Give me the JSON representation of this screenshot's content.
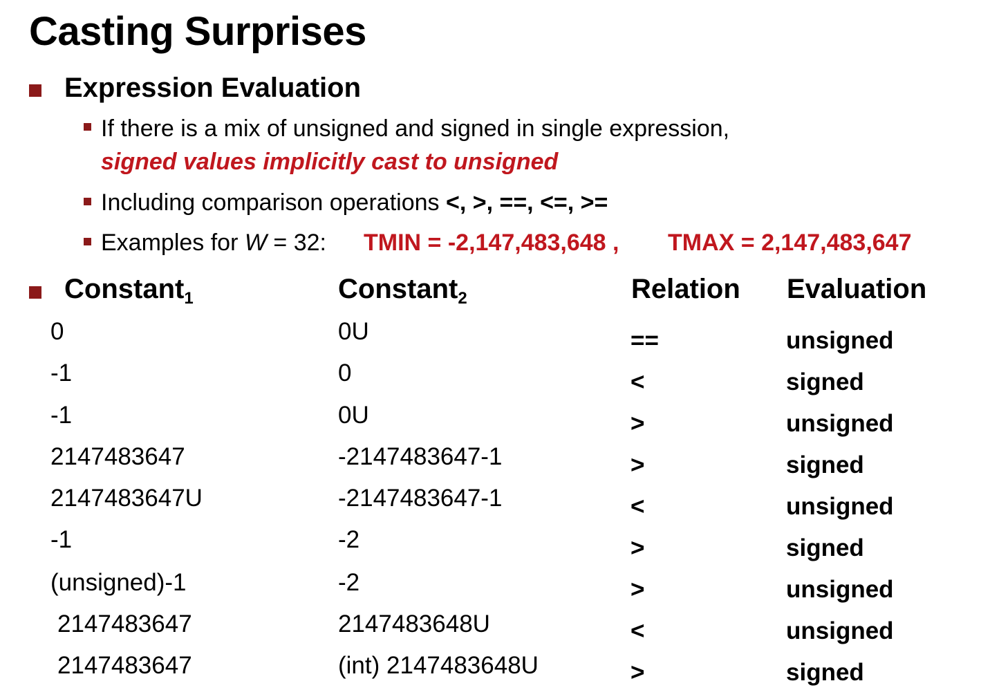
{
  "title": "Casting Surprises",
  "section1": {
    "heading": "Expression Evaluation",
    "bullet1_text": "If there is a mix of unsigned and signed in single expression,",
    "bullet1_emph": "signed values implicitly cast to unsigned",
    "bullet2_text": "Including comparison operations ",
    "bullet2_ops": "<, >, ==, <=, >=",
    "bullet3_prefix": "Examples for ",
    "bullet3_var": "W",
    "bullet3_eq": " = 32:",
    "tmin": "TMIN = -2,147,483,648 ,",
    "tmax": "TMAX = 2,147,483,647"
  },
  "table": {
    "headers": {
      "c1": "Constant",
      "c1_sub": "1",
      "c2": "Constant",
      "c2_sub": "2",
      "relation": "Relation",
      "evaluation": "Evaluation"
    },
    "rows": [
      {
        "c1": "0",
        "c2": "0U",
        "relation": "==",
        "evaluation": "unsigned"
      },
      {
        "c1": "-1",
        "c2": "0",
        "relation": "<",
        "evaluation": "signed"
      },
      {
        "c1": "-1",
        "c2": "0U",
        "relation": ">",
        "evaluation": "unsigned"
      },
      {
        "c1": "2147483647",
        "c2": "-2147483647-1",
        "relation": ">",
        "evaluation": "signed"
      },
      {
        "c1": "2147483647U",
        "c2": "-2147483647-1",
        "relation": "<",
        "evaluation": "unsigned"
      },
      {
        "c1": "-1",
        "c2": "-2",
        "relation": ">",
        "evaluation": "signed"
      },
      {
        "c1": "(unsigned)-1",
        "c2": "-2",
        "relation": ">",
        "evaluation": "unsigned"
      },
      {
        "c1": "2147483647",
        "c2": "2147483648U",
        "relation": "<",
        "evaluation": "unsigned"
      },
      {
        "c1": "2147483647",
        "c2": "(int) 2147483648U",
        "relation": ">",
        "evaluation": "signed"
      }
    ]
  }
}
